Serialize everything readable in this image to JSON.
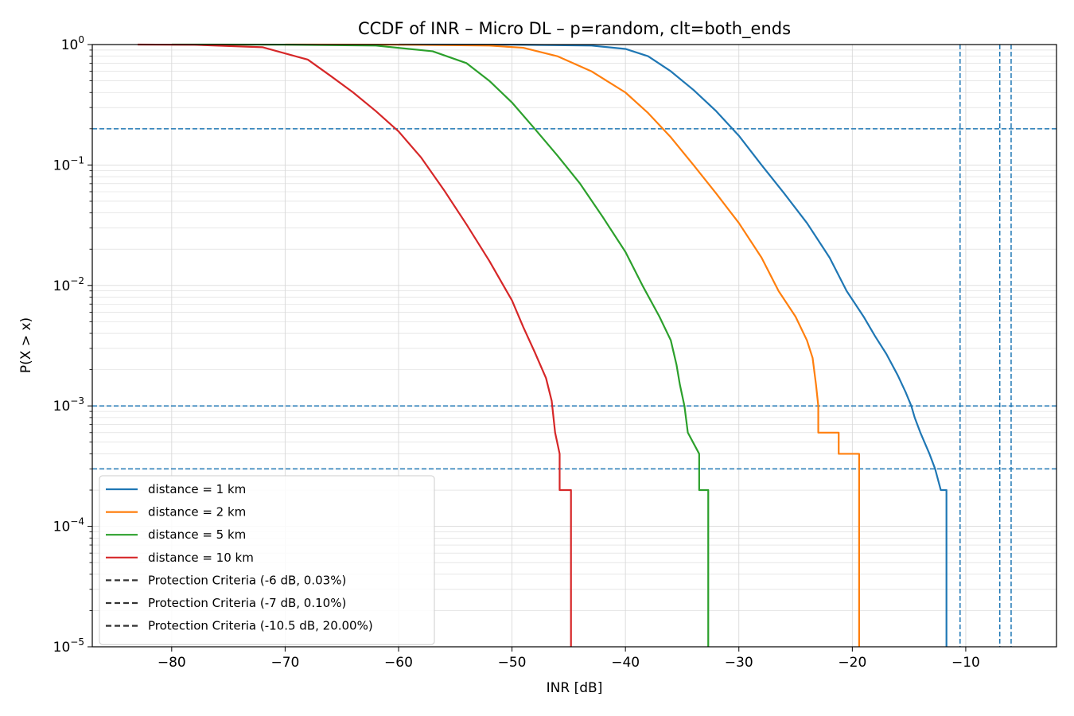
{
  "chart_data": {
    "type": "line",
    "title": "CCDF of INR – Micro DL – p=random, clt=both_ends",
    "xlabel": "INR [dB]",
    "ylabel": "P(X > x)",
    "xlim": [
      -87,
      -2
    ],
    "ylim": [
      1e-05,
      1
    ],
    "yscale": "log",
    "grid": true,
    "legend_position": "lower-left",
    "x_ticks": [
      -80,
      -70,
      -60,
      -50,
      -40,
      -30,
      -20,
      -10
    ],
    "x_tick_labels": [
      "−80",
      "−70",
      "−60",
      "−50",
      "−40",
      "−30",
      "−20",
      "−10"
    ],
    "y_ticks": [
      {
        "value": 1,
        "base": "10",
        "exp": "0",
        "plain": "1"
      },
      {
        "value": 0.1,
        "base": "10",
        "exp": "−1"
      },
      {
        "value": 0.01,
        "base": "10",
        "exp": "−2"
      },
      {
        "value": 0.001,
        "base": "10",
        "exp": "−3"
      },
      {
        "value": 0.0001,
        "base": "10",
        "exp": "−4"
      },
      {
        "value": 1e-05,
        "base": "10",
        "exp": "−5"
      }
    ],
    "series": [
      {
        "name": "distance = 1 km",
        "color": "#1f77b4",
        "points": [
          [
            -60,
            1
          ],
          [
            -50,
            0.998
          ],
          [
            -43,
            0.98
          ],
          [
            -40,
            0.92
          ],
          [
            -38,
            0.8
          ],
          [
            -36,
            0.6
          ],
          [
            -34,
            0.42
          ],
          [
            -32,
            0.28
          ],
          [
            -30,
            0.175
          ],
          [
            -28,
            0.1
          ],
          [
            -26,
            0.058
          ],
          [
            -24,
            0.033
          ],
          [
            -22,
            0.017
          ],
          [
            -20.5,
            0.009
          ],
          [
            -19,
            0.0055
          ],
          [
            -18,
            0.0038
          ],
          [
            -17,
            0.0027
          ],
          [
            -16,
            0.0018
          ],
          [
            -15.3,
            0.0013
          ],
          [
            -14.8,
            0.001
          ],
          [
            -14.5,
            0.0008
          ],
          [
            -14,
            0.0006
          ],
          [
            -13.2,
            0.0004
          ],
          [
            -12.7,
            0.0003
          ],
          [
            -12.2,
            0.0002
          ],
          [
            -11.7,
            0.0002
          ],
          [
            -11.7,
            1e-05
          ]
        ]
      },
      {
        "name": "distance = 2 km",
        "color": "#ff7f0e",
        "points": [
          [
            -70,
            1
          ],
          [
            -60,
            0.998
          ],
          [
            -52,
            0.98
          ],
          [
            -49,
            0.94
          ],
          [
            -46,
            0.8
          ],
          [
            -43,
            0.6
          ],
          [
            -40,
            0.4
          ],
          [
            -38,
            0.27
          ],
          [
            -36,
            0.17
          ],
          [
            -34,
            0.1
          ],
          [
            -32,
            0.058
          ],
          [
            -30,
            0.033
          ],
          [
            -28,
            0.017
          ],
          [
            -26.5,
            0.009
          ],
          [
            -25,
            0.0055
          ],
          [
            -24,
            0.0035
          ],
          [
            -23.5,
            0.0025
          ],
          [
            -23.2,
            0.0015
          ],
          [
            -23,
            0.001
          ],
          [
            -23,
            0.0006
          ],
          [
            -21.2,
            0.0006
          ],
          [
            -21.2,
            0.0004
          ],
          [
            -19.4,
            0.0004
          ],
          [
            -19.4,
            1e-05
          ]
        ]
      },
      {
        "name": "distance = 5 km",
        "color": "#2ca02c",
        "points": [
          [
            -80,
            1
          ],
          [
            -70,
            0.998
          ],
          [
            -62,
            0.98
          ],
          [
            -57,
            0.88
          ],
          [
            -54,
            0.7
          ],
          [
            -52,
            0.5
          ],
          [
            -50,
            0.33
          ],
          [
            -48,
            0.2
          ],
          [
            -46,
            0.12
          ],
          [
            -44,
            0.07
          ],
          [
            -42,
            0.037
          ],
          [
            -40,
            0.019
          ],
          [
            -38.5,
            0.01
          ],
          [
            -37,
            0.0055
          ],
          [
            -36,
            0.0035
          ],
          [
            -35.5,
            0.0022
          ],
          [
            -35.2,
            0.0015
          ],
          [
            -34.8,
            0.001
          ],
          [
            -34.5,
            0.0006
          ],
          [
            -33.5,
            0.0004
          ],
          [
            -33.5,
            0.0002
          ],
          [
            -32.7,
            0.0002
          ],
          [
            -32.7,
            1e-05
          ]
        ]
      },
      {
        "name": "distance = 10 km",
        "color": "#d62728",
        "points": [
          [
            -83,
            1
          ],
          [
            -78,
            0.995
          ],
          [
            -72,
            0.95
          ],
          [
            -68,
            0.75
          ],
          [
            -66,
            0.55
          ],
          [
            -64,
            0.4
          ],
          [
            -62,
            0.28
          ],
          [
            -60,
            0.19
          ],
          [
            -58,
            0.115
          ],
          [
            -56,
            0.062
          ],
          [
            -54,
            0.032
          ],
          [
            -52,
            0.016
          ],
          [
            -50,
            0.0075
          ],
          [
            -49,
            0.0045
          ],
          [
            -48,
            0.0028
          ],
          [
            -47,
            0.0017
          ],
          [
            -46.5,
            0.0011
          ],
          [
            -46.2,
            0.0006
          ],
          [
            -45.8,
            0.0004
          ],
          [
            -45.8,
            0.0002
          ],
          [
            -44.8,
            0.0002
          ],
          [
            -44.8,
            1e-05
          ]
        ]
      }
    ],
    "reference_lines": {
      "color": "#1f77b4",
      "horizontal": [
        0.2,
        0.001,
        0.0003
      ],
      "vertical": [
        -10.5,
        -7,
        -6
      ]
    },
    "legend": [
      {
        "label": "distance = 1 km",
        "color": "#1f77b4",
        "style": "solid"
      },
      {
        "label": "distance = 2 km",
        "color": "#ff7f0e",
        "style": "solid"
      },
      {
        "label": "distance = 5 km",
        "color": "#2ca02c",
        "style": "solid"
      },
      {
        "label": "distance = 10 km",
        "color": "#d62728",
        "style": "solid"
      },
      {
        "label": "Protection Criteria (-6 dB, 0.03%)",
        "color": "#333333",
        "style": "dashed"
      },
      {
        "label": "Protection Criteria (-7 dB, 0.10%)",
        "color": "#333333",
        "style": "dashed"
      },
      {
        "label": "Protection Criteria (-10.5 dB, 20.00%)",
        "color": "#333333",
        "style": "dashed"
      }
    ]
  }
}
